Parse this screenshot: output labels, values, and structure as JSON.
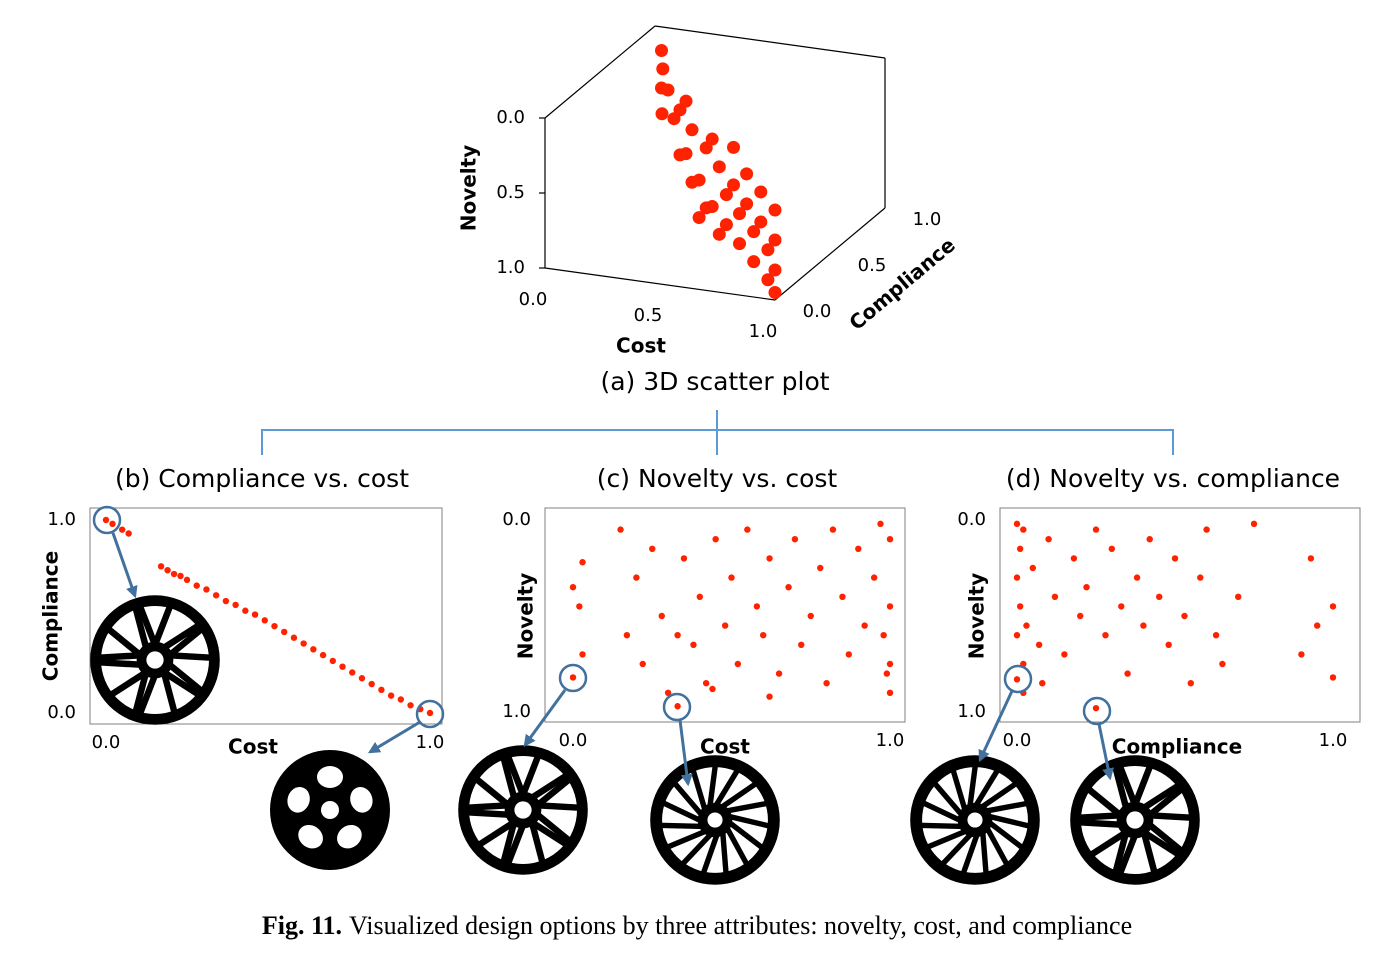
{
  "chart_data": [
    {
      "type": "scatter3d",
      "title": "(a) 3D scatter plot",
      "color": "#ff2200",
      "x_label": "Cost",
      "y_label": "Compliance",
      "z_label": "Novelty",
      "x": [
        0.1,
        0.1,
        0.12,
        0.15,
        0.2,
        0.25,
        0.3,
        0.35,
        0.4,
        0.45,
        0.5,
        0.55,
        0.6,
        0.65,
        0.7,
        0.75,
        0.8,
        0.85,
        0.9,
        0.95,
        1.0,
        1.0,
        0.3,
        0.4,
        0.5,
        0.6,
        0.7,
        0.8,
        0.9,
        1.0,
        0.35,
        0.55,
        0.75,
        0.95,
        0.45,
        0.65,
        0.85,
        1.0
      ],
      "y": [
        0.85,
        0.85,
        0.82,
        0.75,
        0.7,
        0.65,
        0.6,
        0.55,
        0.5,
        0.46,
        0.42,
        0.37,
        0.33,
        0.29,
        0.25,
        0.2,
        0.16,
        0.12,
        0.08,
        0.04,
        0.0,
        0.0,
        0.6,
        0.5,
        0.42,
        0.33,
        0.25,
        0.16,
        0.08,
        0.0,
        0.55,
        0.37,
        0.2,
        0.04,
        0.46,
        0.29,
        0.12,
        0.0
      ],
      "z": [
        0.05,
        0.3,
        0.15,
        0.4,
        0.2,
        0.35,
        0.25,
        0.5,
        0.3,
        0.6,
        0.35,
        0.7,
        0.4,
        0.75,
        0.45,
        0.8,
        0.5,
        0.85,
        0.55,
        0.9,
        0.6,
        0.95,
        0.55,
        0.65,
        0.75,
        0.85,
        0.2,
        0.3,
        0.35,
        0.4,
        0.15,
        0.25,
        0.6,
        0.7,
        0.85,
        0.55,
        0.65,
        0.8
      ],
      "xlim": [
        0,
        1
      ],
      "ylim": [
        0,
        1
      ],
      "zlim": [
        1,
        0
      ],
      "xticks": [
        {
          "value": 0,
          "label": "0.0"
        },
        0.5,
        {
          "value": 1,
          "label": "1.0"
        }
      ],
      "yticks": [
        {
          "value": 0,
          "label": "0.0"
        },
        0.5,
        {
          "value": 1,
          "label": "1.0"
        }
      ],
      "zticks": [
        {
          "value": 0,
          "label": "0.0"
        },
        0.5,
        {
          "value": 1,
          "label": "1.0"
        }
      ]
    },
    {
      "type": "scatter",
      "title": "(b) Compliance vs. cost",
      "color": "#ff2200",
      "x_label": "Cost",
      "y_label": "Compliance",
      "x": [
        0,
        0.02,
        0.05,
        0.07,
        0.17,
        0.19,
        0.21,
        0.23,
        0.25,
        0.28,
        0.31,
        0.34,
        0.37,
        0.4,
        0.43,
        0.46,
        0.49,
        0.52,
        0.55,
        0.58,
        0.61,
        0.64,
        0.67,
        0.7,
        0.73,
        0.76,
        0.79,
        0.82,
        0.85,
        0.88,
        0.91,
        0.94,
        0.97,
        1.0
      ],
      "y": [
        1,
        0.98,
        0.95,
        0.93,
        0.76,
        0.74,
        0.72,
        0.71,
        0.69,
        0.66,
        0.64,
        0.61,
        0.58,
        0.56,
        0.53,
        0.51,
        0.48,
        0.45,
        0.42,
        0.39,
        0.36,
        0.33,
        0.3,
        0.27,
        0.24,
        0.21,
        0.18,
        0.15,
        0.12,
        0.09,
        0.07,
        0.04,
        0.02,
        0.0
      ],
      "xlim": [
        0,
        1
      ],
      "ylim": [
        0,
        1
      ],
      "xticks": [
        {
          "value": 0,
          "label": "0.0"
        },
        {
          "value": 1,
          "label": "1.0"
        }
      ],
      "yticks": [
        {
          "value": 0,
          "label": "0.0"
        },
        {
          "value": 1,
          "label": "1.0"
        }
      ]
    },
    {
      "type": "scatter",
      "title": "(c) Novelty vs. cost",
      "color": "#ff2200",
      "x_label": "Cost",
      "y_label": "Novelty",
      "x": [
        0.0,
        0.0,
        0.02,
        0.03,
        0.03,
        0.15,
        0.17,
        0.2,
        0.22,
        0.25,
        0.28,
        0.3,
        0.33,
        0.35,
        0.38,
        0.4,
        0.42,
        0.45,
        0.48,
        0.5,
        0.52,
        0.55,
        0.58,
        0.6,
        0.62,
        0.65,
        0.68,
        0.7,
        0.72,
        0.75,
        0.78,
        0.8,
        0.82,
        0.85,
        0.87,
        0.9,
        0.92,
        0.95,
        0.97,
        0.98,
        0.99,
        1.0,
        1.0,
        1.0,
        1.0,
        0.33,
        0.62,
        0.44
      ],
      "y": [
        0.35,
        0.82,
        0.45,
        0.22,
        0.7,
        0.05,
        0.6,
        0.3,
        0.75,
        0.15,
        0.5,
        0.9,
        0.6,
        0.2,
        0.65,
        0.4,
        0.85,
        0.1,
        0.55,
        0.3,
        0.75,
        0.05,
        0.45,
        0.6,
        0.2,
        0.8,
        0.35,
        0.1,
        0.65,
        0.5,
        0.25,
        0.85,
        0.05,
        0.4,
        0.7,
        0.15,
        0.55,
        0.3,
        0.02,
        0.6,
        0.8,
        0.1,
        0.45,
        0.75,
        0.9,
        0.97,
        0.92,
        0.88
      ],
      "xlim": [
        0,
        1
      ],
      "ylim": [
        1,
        0
      ],
      "xticks": [
        {
          "value": 0,
          "label": "0.0"
        },
        {
          "value": 1,
          "label": "1.0"
        }
      ],
      "yticks": [
        {
          "value": 0,
          "label": "0.0"
        },
        {
          "value": 1,
          "label": "1.0"
        }
      ]
    },
    {
      "type": "scatter",
      "title": "(d) Novelty vs. compliance",
      "color": "#ff2200",
      "x_label": "Compliance",
      "y_label": "Novelty",
      "x": [
        0.0,
        0.0,
        0.0,
        0.0,
        0.01,
        0.01,
        0.02,
        0.02,
        0.03,
        0.05,
        0.07,
        0.1,
        0.12,
        0.15,
        0.18,
        0.2,
        0.22,
        0.25,
        0.25,
        0.28,
        0.3,
        0.33,
        0.35,
        0.38,
        0.4,
        0.42,
        0.45,
        0.48,
        0.5,
        0.53,
        0.55,
        0.58,
        0.6,
        0.63,
        0.65,
        0.7,
        0.75,
        0.9,
        0.93,
        0.95,
        1.0,
        1.0,
        0.02,
        0.08
      ],
      "y": [
        0.02,
        0.3,
        0.6,
        0.83,
        0.15,
        0.45,
        0.75,
        0.05,
        0.55,
        0.25,
        0.65,
        0.1,
        0.4,
        0.7,
        0.2,
        0.5,
        0.35,
        0.98,
        0.05,
        0.6,
        0.15,
        0.45,
        0.8,
        0.3,
        0.55,
        0.1,
        0.4,
        0.65,
        0.2,
        0.5,
        0.85,
        0.3,
        0.05,
        0.6,
        0.75,
        0.4,
        0.02,
        0.7,
        0.2,
        0.55,
        0.45,
        0.82,
        0.9,
        0.85
      ],
      "xlim": [
        0,
        1
      ],
      "ylim": [
        1,
        0
      ],
      "xticks": [
        {
          "value": 0,
          "label": "0.0"
        },
        {
          "value": 1,
          "label": "1.0"
        }
      ],
      "yticks": [
        {
          "value": 0,
          "label": "0.0"
        },
        {
          "value": 1,
          "label": "1.0"
        }
      ]
    }
  ],
  "caption": {
    "label": "Fig. 11.",
    "text": "Visualized design options by three attributes: novelty, cost, and compliance"
  }
}
